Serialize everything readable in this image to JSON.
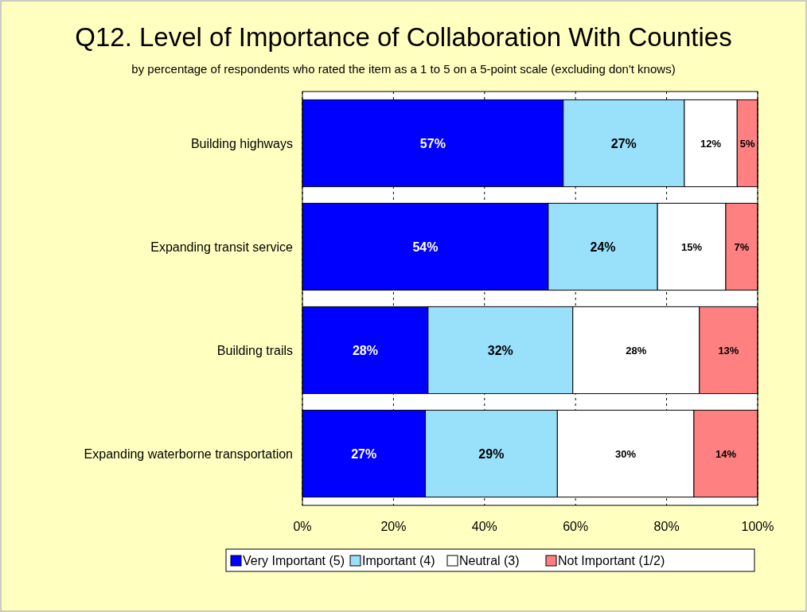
{
  "chart_data": {
    "type": "bar",
    "orientation": "horizontal",
    "stacked": true,
    "title": "Q12. Level of Importance of Collaboration With Counties",
    "subtitle": "by percentage of respondents who rated the item as a 1 to 5 on a 5-point scale (excluding don't knows)",
    "categories": [
      "Building highways",
      "Expanding transit service",
      "Building trails",
      "Expanding waterborne transportation"
    ],
    "series": [
      {
        "name": "Very Important (5)",
        "color": "#0000ff",
        "values": [
          57.3,
          54,
          27.6,
          27
        ],
        "value_labels": [
          "57%",
          "54%",
          "28%",
          "27%"
        ]
      },
      {
        "name": "Important (4)",
        "color": "#99e0fa",
        "values": [
          26.6,
          24,
          31.8,
          29
        ],
        "value_labels": [
          "27%",
          "24%",
          "32%",
          "29%"
        ]
      },
      {
        "name": "Neutral (3)",
        "color": "#ffffff",
        "values": [
          11.6,
          15,
          27.8,
          30
        ],
        "value_labels": [
          "12%",
          "15%",
          "28%",
          "30%"
        ]
      },
      {
        "name": "Not Important (1/2)",
        "color": "#ff8080",
        "values": [
          4.5,
          7,
          12.8,
          14
        ],
        "value_labels": [
          "5%",
          "7%",
          "13%",
          "14%"
        ]
      }
    ],
    "xlim": [
      0,
      100
    ],
    "xticks": [
      {
        "value": 0,
        "label": "0%"
      },
      {
        "value": 20,
        "label": "20%"
      },
      {
        "value": 40,
        "label": "40%"
      },
      {
        "value": 60,
        "label": "60%"
      },
      {
        "value": 80,
        "label": "80%"
      },
      {
        "value": 100,
        "label": "100%"
      }
    ],
    "grid": "x",
    "legend": "bottom"
  }
}
